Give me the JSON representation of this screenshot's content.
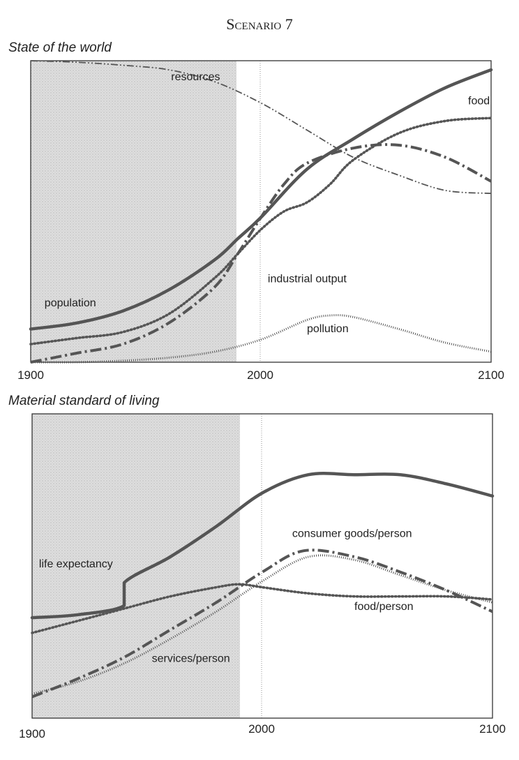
{
  "title": "Scenario 7",
  "chart_data": [
    {
      "type": "line",
      "title": "State of the world",
      "xlabel": "",
      "ylabel": "",
      "xlim": [
        1900,
        2100
      ],
      "ylim": [
        0,
        1
      ],
      "x_ticks": [
        1900,
        2000,
        2100
      ],
      "tick_labels": [
        "1900",
        "2000",
        "2100"
      ],
      "historical_shading": [
        1900,
        1990
      ],
      "grid": false,
      "series": [
        {
          "name": "resources",
          "style": "dash-dot-dot",
          "points": [
            [
              1900,
              1.0
            ],
            [
              1920,
              0.995
            ],
            [
              1940,
              0.985
            ],
            [
              1960,
              0.97
            ],
            [
              1980,
              0.93
            ],
            [
              2000,
              0.86
            ],
            [
              2020,
              0.77
            ],
            [
              2040,
              0.68
            ],
            [
              2060,
              0.62
            ],
            [
              2080,
              0.57
            ],
            [
              2100,
              0.56
            ]
          ]
        },
        {
          "name": "food",
          "style": "dotted",
          "points": [
            [
              1900,
              0.06
            ],
            [
              1920,
              0.08
            ],
            [
              1940,
              0.1
            ],
            [
              1960,
              0.16
            ],
            [
              1980,
              0.28
            ],
            [
              1990,
              0.36
            ],
            [
              2000,
              0.44
            ],
            [
              2010,
              0.5
            ],
            [
              2020,
              0.53
            ],
            [
              2030,
              0.59
            ],
            [
              2040,
              0.67
            ],
            [
              2060,
              0.76
            ],
            [
              2080,
              0.8
            ],
            [
              2100,
              0.81
            ]
          ]
        },
        {
          "name": "population",
          "style": "solid",
          "points": [
            [
              1900,
              0.11
            ],
            [
              1920,
              0.13
            ],
            [
              1940,
              0.17
            ],
            [
              1960,
              0.24
            ],
            [
              1980,
              0.34
            ],
            [
              1990,
              0.41
            ],
            [
              2000,
              0.48
            ],
            [
              2020,
              0.64
            ],
            [
              2040,
              0.74
            ],
            [
              2060,
              0.83
            ],
            [
              2080,
              0.91
            ],
            [
              2100,
              0.97
            ]
          ]
        },
        {
          "name": "industrial output",
          "style": "dash-dot",
          "points": [
            [
              1900,
              0.0
            ],
            [
              1920,
              0.03
            ],
            [
              1940,
              0.06
            ],
            [
              1960,
              0.13
            ],
            [
              1980,
              0.25
            ],
            [
              1990,
              0.36
            ],
            [
              2000,
              0.48
            ],
            [
              2010,
              0.59
            ],
            [
              2020,
              0.66
            ],
            [
              2040,
              0.71
            ],
            [
              2060,
              0.72
            ],
            [
              2080,
              0.68
            ],
            [
              2100,
              0.6
            ]
          ]
        },
        {
          "name": "pollution",
          "style": "fine-dotted",
          "points": [
            [
              1900,
              0.0
            ],
            [
              1920,
              0.0
            ],
            [
              1940,
              0.005
            ],
            [
              1960,
              0.015
            ],
            [
              1980,
              0.035
            ],
            [
              2000,
              0.075
            ],
            [
              2020,
              0.14
            ],
            [
              2030,
              0.155
            ],
            [
              2040,
              0.15
            ],
            [
              2060,
              0.11
            ],
            [
              2080,
              0.065
            ],
            [
              2100,
              0.035
            ]
          ]
        }
      ]
    },
    {
      "type": "line",
      "title": "Material standard of living",
      "xlabel": "",
      "ylabel": "",
      "xlim": [
        1900,
        2100
      ],
      "ylim": [
        0,
        1
      ],
      "x_ticks": [
        1900,
        2000,
        2100
      ],
      "tick_labels": [
        "1900",
        "2000",
        "2100"
      ],
      "historical_shading": [
        1900,
        1990
      ],
      "grid": false,
      "series": [
        {
          "name": "life expectancy",
          "style": "solid",
          "points": [
            [
              1900,
              0.33
            ],
            [
              1920,
              0.34
            ],
            [
              1940,
              0.37
            ],
            [
              1940,
              0.445
            ],
            [
              1960,
              0.53
            ],
            [
              1980,
              0.63
            ],
            [
              2000,
              0.74
            ],
            [
              2020,
              0.8
            ],
            [
              2040,
              0.8
            ],
            [
              2060,
              0.8
            ],
            [
              2080,
              0.77
            ],
            [
              2100,
              0.73
            ]
          ]
        },
        {
          "name": "consumer goods/person",
          "style": "dash-dot",
          "points": [
            [
              1900,
              0.07
            ],
            [
              1920,
              0.13
            ],
            [
              1940,
              0.2
            ],
            [
              1960,
              0.29
            ],
            [
              1980,
              0.38
            ],
            [
              2000,
              0.48
            ],
            [
              2018,
              0.55
            ],
            [
              2040,
              0.53
            ],
            [
              2060,
              0.48
            ],
            [
              2080,
              0.42
            ],
            [
              2100,
              0.35
            ]
          ]
        },
        {
          "name": "food/person",
          "style": "dotted",
          "points": [
            [
              1900,
              0.28
            ],
            [
              1920,
              0.32
            ],
            [
              1940,
              0.36
            ],
            [
              1960,
              0.4
            ],
            [
              1980,
              0.43
            ],
            [
              1990,
              0.44
            ],
            [
              2000,
              0.43
            ],
            [
              2020,
              0.41
            ],
            [
              2040,
              0.4
            ],
            [
              2060,
              0.4
            ],
            [
              2080,
              0.4
            ],
            [
              2100,
              0.39
            ]
          ]
        },
        {
          "name": "services/person",
          "style": "fine-dotted",
          "points": [
            [
              1900,
              0.08
            ],
            [
              1920,
              0.12
            ],
            [
              1940,
              0.18
            ],
            [
              1960,
              0.26
            ],
            [
              1980,
              0.35
            ],
            [
              2000,
              0.45
            ],
            [
              2020,
              0.53
            ],
            [
              2040,
              0.52
            ],
            [
              2060,
              0.47
            ],
            [
              2080,
              0.42
            ],
            [
              2100,
              0.38
            ]
          ]
        }
      ]
    }
  ],
  "annotations": {
    "top": [
      {
        "text": "resources",
        "x": 1961,
        "y": 0.935
      },
      {
        "text": "food",
        "x": 2090,
        "y": 0.855
      },
      {
        "text": "industrial output",
        "x": 2003,
        "y": 0.265
      },
      {
        "text": "population",
        "x": 1906,
        "y": 0.185
      },
      {
        "text": "pollution",
        "x": 2020,
        "y": 0.1
      }
    ],
    "bottom": [
      {
        "text": "life expectancy",
        "x": 1903,
        "y": 0.495
      },
      {
        "text": "consumer goods/person",
        "x": 2013,
        "y": 0.595
      },
      {
        "text": "food/person",
        "x": 2040,
        "y": 0.355
      },
      {
        "text": "services/person",
        "x": 1952,
        "y": 0.185
      }
    ]
  }
}
